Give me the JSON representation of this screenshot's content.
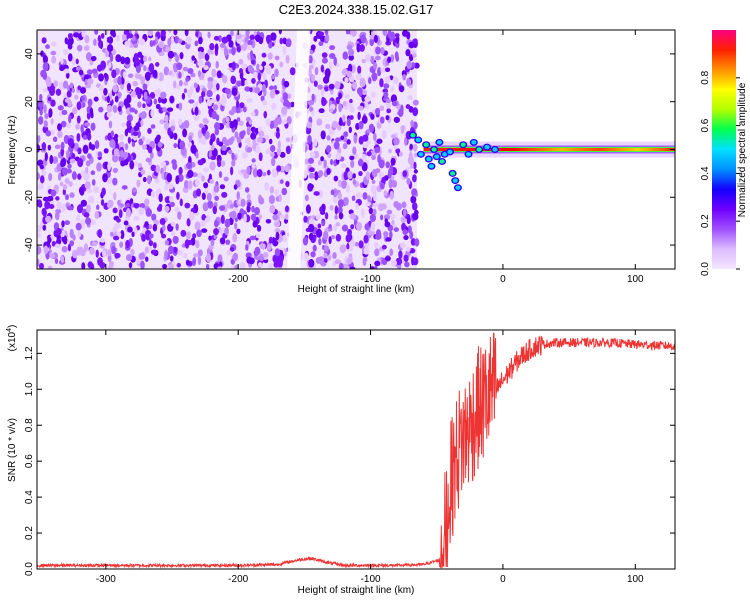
{
  "title": "C2E3.2024.338.15.02.G17",
  "chart_data": [
    {
      "type": "heatmap",
      "xlabel": "Height of straight line (km)",
      "ylabel": "Frequency (Hz)",
      "xlim": [
        -352,
        130
      ],
      "ylim": [
        -50,
        50
      ],
      "xticks": [
        -300,
        -200,
        -100,
        0,
        100
      ],
      "yticks": [
        -40,
        -20,
        0,
        20,
        40
      ],
      "colorbar": {
        "label": "Normalized spectral amplitude",
        "range": [
          0,
          1
        ],
        "ticks": [
          0.0,
          0.2,
          0.4,
          0.6,
          0.8
        ],
        "tick_labels": [
          "0.0",
          "0.2",
          "0.4",
          "0.6",
          "0.8"
        ],
        "colors": [
          "#f4e6ff",
          "#dcbcff",
          "#a050ff",
          "#7000ff",
          "#1400ff",
          "#0090ff",
          "#00e0ff",
          "#00ff50",
          "#b0ff00",
          "#ffff00",
          "#ff9000",
          "#ff2000",
          "#ff0080"
        ]
      },
      "noise_region_x": [
        -352,
        -65
      ],
      "blank_gap_x": [
        -160,
        -150
      ],
      "carrier_band": {
        "x": [
          -60,
          130
        ],
        "frequency": 0
      }
    },
    {
      "type": "line",
      "xlabel": "Height of straight line (km)",
      "ylabel": "SNR (10 * v/v)",
      "y_multiplier_label": "(x10",
      "y_multiplier_exp": "4",
      "y_multiplier_close": ")",
      "xlim": [
        -352,
        130
      ],
      "ylim": [
        0,
        1.33
      ],
      "xticks": [
        -300,
        -200,
        -100,
        0,
        100
      ],
      "yticks": [
        0.0,
        0.2,
        0.4,
        0.6,
        0.8,
        1.0,
        1.2
      ],
      "ytick_labels": [
        "0.0",
        "0.2",
        "0.4",
        "0.6",
        "0.8",
        "1.0",
        "1.2"
      ],
      "color": "#ee3333",
      "series": [
        {
          "x": [
            -352,
            -300,
            -250,
            -200,
            -170,
            -155,
            -145,
            -135,
            -120,
            -100,
            -80,
            -60,
            -48,
            -44,
            -40,
            -36,
            -32,
            -28,
            -24,
            -20,
            -15,
            -10,
            -5,
            0,
            5,
            10,
            15,
            20,
            25,
            30,
            40,
            50,
            60,
            80,
            100,
            130
          ],
          "y": [
            0.02,
            0.02,
            0.02,
            0.02,
            0.025,
            0.05,
            0.06,
            0.04,
            0.02,
            0.02,
            0.02,
            0.025,
            0.05,
            0.2,
            0.45,
            0.6,
            0.7,
            0.75,
            0.8,
            0.88,
            0.92,
            0.98,
            1.0,
            1.05,
            1.1,
            1.15,
            1.19,
            1.22,
            1.24,
            1.25,
            1.26,
            1.26,
            1.26,
            1.26,
            1.25,
            1.24
          ]
        }
      ]
    }
  ]
}
